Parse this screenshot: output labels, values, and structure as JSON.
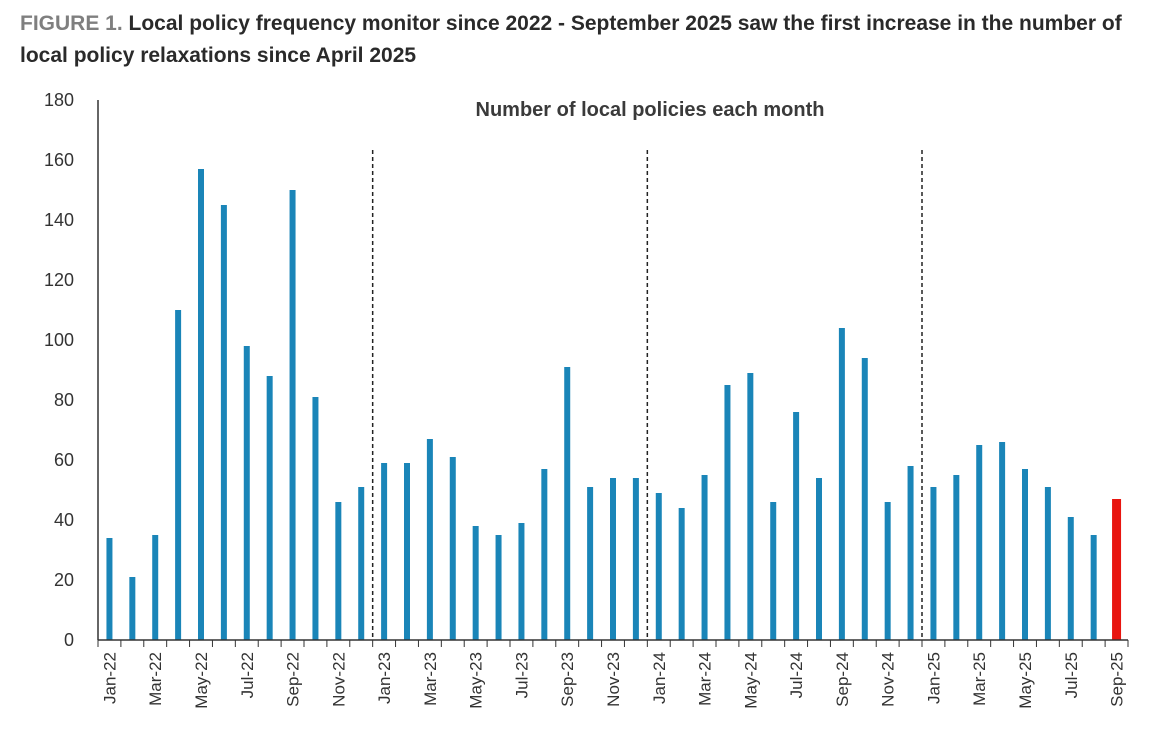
{
  "figure": {
    "label": "FIGURE 1.",
    "title": "Local policy frequency monitor since 2022 - September 2025 saw the first increase in the number of local policy relaxations since April 2025"
  },
  "colors": {
    "bar": "#1a85b8",
    "highlight": "#e8150f",
    "axis": "#333333",
    "divider": "#222222"
  },
  "chart_data": {
    "type": "bar",
    "title": "Number of local policies each month",
    "xlabel": "",
    "ylabel": "",
    "ylim": [
      0,
      180
    ],
    "yticks": [
      0,
      20,
      40,
      60,
      80,
      100,
      120,
      140,
      160,
      180
    ],
    "grid": false,
    "categories": [
      "Jan-22",
      "Feb-22",
      "Mar-22",
      "Apr-22",
      "May-22",
      "Jun-22",
      "Jul-22",
      "Aug-22",
      "Sep-22",
      "Oct-22",
      "Nov-22",
      "Dec-22",
      "Jan-23",
      "Feb-23",
      "Mar-23",
      "Apr-23",
      "May-23",
      "Jun-23",
      "Jul-23",
      "Aug-23",
      "Sep-23",
      "Oct-23",
      "Nov-23",
      "Dec-23",
      "Jan-24",
      "Feb-24",
      "Mar-24",
      "Apr-24",
      "May-24",
      "Jun-24",
      "Jul-24",
      "Aug-24",
      "Sep-24",
      "Oct-24",
      "Nov-24",
      "Dec-24",
      "Jan-25",
      "Feb-25",
      "Mar-25",
      "Apr-25",
      "May-25",
      "Jun-25",
      "Jul-25",
      "Aug-25",
      "Sep-25"
    ],
    "xtick_labels": [
      "Jan-22",
      "Mar-22",
      "May-22",
      "Jul-22",
      "Sep-22",
      "Nov-22",
      "Jan-23",
      "Mar-23",
      "May-23",
      "Jul-23",
      "Sep-23",
      "Nov-23",
      "Jan-24",
      "Mar-24",
      "May-24",
      "Jul-24",
      "Sep-24",
      "Nov-24",
      "Jan-25",
      "Mar-25",
      "May-25",
      "Jul-25",
      "Sep-25"
    ],
    "values": [
      34,
      21,
      35,
      110,
      157,
      145,
      98,
      88,
      150,
      81,
      46,
      51,
      59,
      59,
      67,
      61,
      38,
      35,
      39,
      57,
      91,
      51,
      54,
      54,
      49,
      44,
      55,
      85,
      89,
      46,
      76,
      54,
      104,
      94,
      46,
      58,
      51,
      55,
      65,
      66,
      57,
      51,
      41,
      35,
      47
    ],
    "highlighted": [
      "Sep-25"
    ],
    "year_dividers": [
      "Jan-23",
      "Jan-24",
      "Jan-25"
    ]
  }
}
